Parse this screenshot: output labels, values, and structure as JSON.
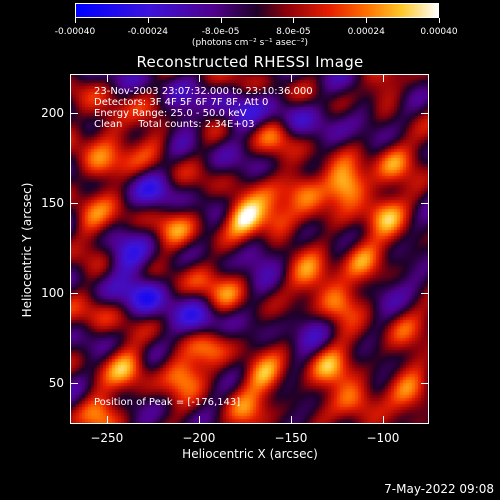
{
  "chart_data": {
    "type": "heatmap",
    "title": "Reconstructed RHESSI Image",
    "xlabel": "Heliocentric X (arcsec)",
    "ylabel": "Heliocentric Y (arcsec)",
    "xlim": [
      -270,
      -75
    ],
    "ylim": [
      27,
      222
    ],
    "xticks": [
      -250,
      -200,
      -150,
      -100
    ],
    "yticks": [
      50,
      100,
      150,
      200
    ],
    "colorbar": {
      "range": [
        -0.0004,
        0.0004
      ],
      "tick_labels": [
        "-0.00040",
        "-0.00024",
        "-8.0e-05",
        "8.0e-05",
        "0.00024",
        "0.00040"
      ],
      "tick_values": [
        -0.0004,
        -0.00024,
        -8e-05,
        8e-05,
        0.00024,
        0.0004
      ],
      "unit_label": "(photons cm⁻² s⁻¹ asec⁻²)"
    },
    "annotations": [
      "23-Nov-2003 23:07:32.000 to 23:10:36.000",
      "Detectors: 3F 4F 5F 6F 7F 8F, Att 0",
      "Energy Range: 25.0 - 50.0 keV",
      "Clean     Total counts: 2.34E+03",
      "Position of Peak = [-176,143]"
    ],
    "peak": {
      "x": -176,
      "y": 143
    },
    "hotspots": [
      {
        "x": -176,
        "y": 143,
        "v": 0.0004
      },
      {
        "x": -120,
        "y": 160,
        "v": 0.00036
      },
      {
        "x": -145,
        "y": 160,
        "v": 0.00028
      },
      {
        "x": -158,
        "y": 140,
        "v": 0.00026
      },
      {
        "x": -100,
        "y": 145,
        "v": 0.00028
      },
      {
        "x": -95,
        "y": 175,
        "v": 0.00026
      },
      {
        "x": -125,
        "y": 95,
        "v": 0.0003
      },
      {
        "x": -112,
        "y": 120,
        "v": 0.00026
      },
      {
        "x": -140,
        "y": 110,
        "v": 0.00022
      },
      {
        "x": -130,
        "y": 60,
        "v": 0.00028
      },
      {
        "x": -115,
        "y": 40,
        "v": 0.00026
      },
      {
        "x": -85,
        "y": 45,
        "v": 0.00022
      },
      {
        "x": -90,
        "y": 80,
        "v": 0.0002
      },
      {
        "x": -255,
        "y": 170,
        "v": 0.00026
      },
      {
        "x": -260,
        "y": 140,
        "v": 0.0002
      },
      {
        "x": -250,
        "y": 195,
        "v": 0.00022
      },
      {
        "x": -225,
        "y": 185,
        "v": 0.00018
      },
      {
        "x": -240,
        "y": 60,
        "v": 0.00024
      },
      {
        "x": -210,
        "y": 55,
        "v": 0.00026
      },
      {
        "x": -195,
        "y": 70,
        "v": 0.00022
      },
      {
        "x": -165,
        "y": 55,
        "v": 0.00024
      },
      {
        "x": -175,
        "y": 35,
        "v": 0.0002
      },
      {
        "x": -255,
        "y": 35,
        "v": 0.00024
      },
      {
        "x": -200,
        "y": 110,
        "v": 0.00016
      },
      {
        "x": -215,
        "y": 135,
        "v": 0.00016
      },
      {
        "x": -160,
        "y": 190,
        "v": 0.00016
      },
      {
        "x": -185,
        "y": 100,
        "v": 0.00014
      },
      {
        "x": -255,
        "y": 90,
        "v": 0.00012
      },
      {
        "x": -100,
        "y": 215,
        "v": 0.00018
      }
    ],
    "coldspots": [
      {
        "x": -230,
        "y": 100,
        "v": -0.00028
      },
      {
        "x": -200,
        "y": 85,
        "v": -0.00024
      },
      {
        "x": -240,
        "y": 120,
        "v": -0.0002
      },
      {
        "x": -180,
        "y": 200,
        "v": -0.00018
      },
      {
        "x": -150,
        "y": 200,
        "v": -0.00016
      },
      {
        "x": -110,
        "y": 200,
        "v": -0.00014
      },
      {
        "x": -170,
        "y": 125,
        "v": -0.00018
      },
      {
        "x": -225,
        "y": 160,
        "v": -0.00014
      },
      {
        "x": -140,
        "y": 80,
        "v": -0.00014
      },
      {
        "x": -100,
        "y": 100,
        "v": -0.00012
      },
      {
        "x": -210,
        "y": 200,
        "v": -0.00014
      }
    ]
  },
  "timestamp": "7-May-2022 09:08"
}
